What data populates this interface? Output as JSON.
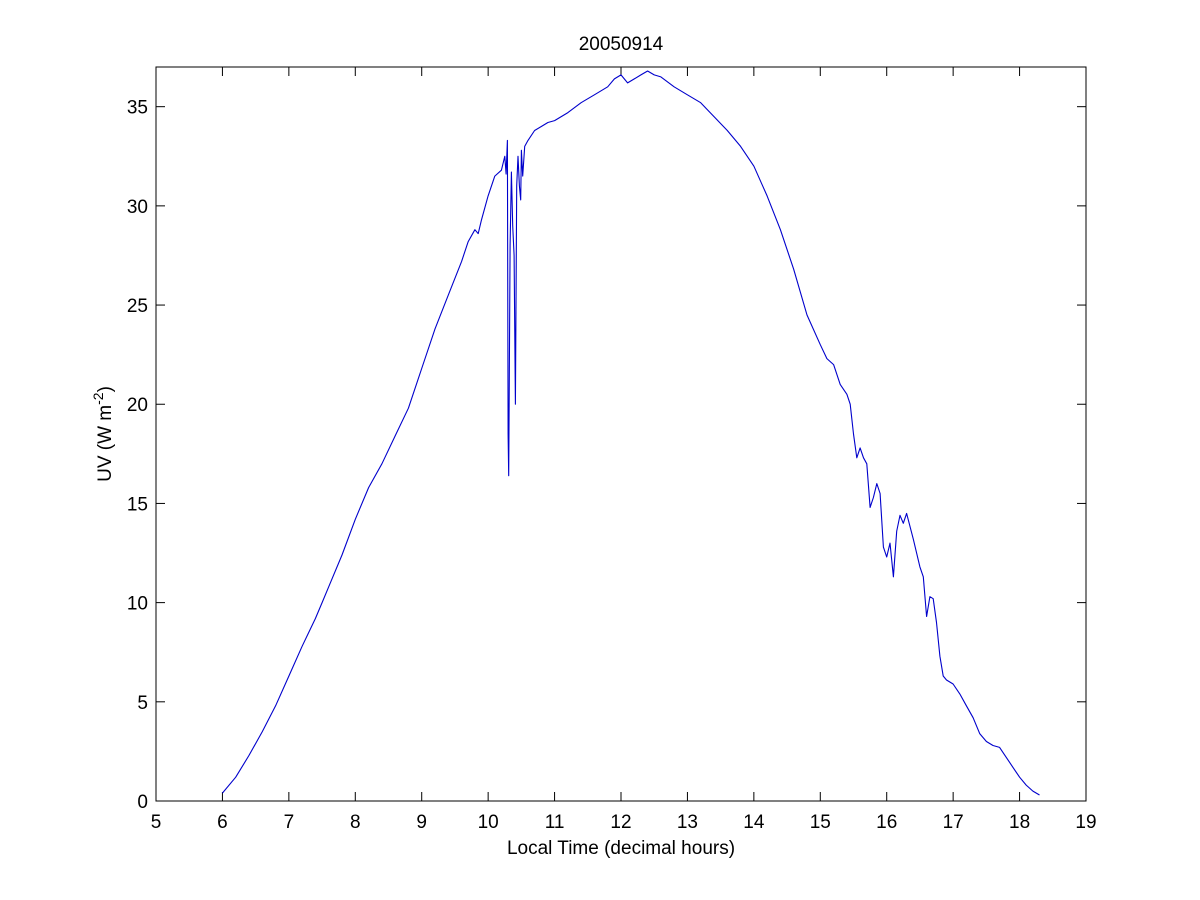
{
  "chart_data": {
    "type": "line",
    "title": "20050914",
    "xlabel": "Local Time (decimal hours)",
    "ylabel": {
      "prefix": "UV (W m",
      "superscript": "-2",
      "suffix": ")"
    },
    "xlim": [
      5,
      19
    ],
    "ylim": [
      0,
      37
    ],
    "xticks": [
      5,
      6,
      7,
      8,
      9,
      10,
      11,
      12,
      13,
      14,
      15,
      16,
      17,
      18,
      19
    ],
    "yticks": [
      0,
      5,
      10,
      15,
      20,
      25,
      30,
      35
    ],
    "grid": false,
    "legend": "none",
    "line_color": "#0000cc",
    "series": [
      {
        "x": [
          6.0,
          6.2,
          6.4,
          6.6,
          6.8,
          7.0,
          7.2,
          7.4,
          7.5,
          7.6,
          7.8,
          8.0,
          8.2,
          8.4,
          8.6,
          8.8,
          9.0,
          9.2,
          9.4,
          9.6,
          9.7,
          9.8,
          9.85,
          9.9,
          10.0,
          10.1,
          10.2,
          10.25,
          10.27,
          10.29,
          10.3,
          10.31,
          10.33,
          10.35,
          10.37,
          10.39,
          10.41,
          10.43,
          10.45,
          10.47,
          10.49,
          10.5,
          10.52,
          10.55,
          10.6,
          10.7,
          10.8,
          10.9,
          11.0,
          11.2,
          11.4,
          11.6,
          11.8,
          11.9,
          12.0,
          12.1,
          12.2,
          12.3,
          12.4,
          12.5,
          12.6,
          12.8,
          13.0,
          13.2,
          13.4,
          13.6,
          13.8,
          14.0,
          14.2,
          14.4,
          14.6,
          14.8,
          15.0,
          15.1,
          15.2,
          15.3,
          15.4,
          15.45,
          15.5,
          15.55,
          15.6,
          15.65,
          15.7,
          15.75,
          15.8,
          15.85,
          15.9,
          15.95,
          16.0,
          16.05,
          16.1,
          16.15,
          16.2,
          16.25,
          16.3,
          16.4,
          16.5,
          16.55,
          16.6,
          16.65,
          16.7,
          16.75,
          16.8,
          16.85,
          16.9,
          17.0,
          17.1,
          17.2,
          17.3,
          17.4,
          17.5,
          17.6,
          17.7,
          17.8,
          17.9,
          18.0,
          18.1,
          18.2,
          18.3
        ],
        "y": [
          0.4,
          1.2,
          2.3,
          3.5,
          4.8,
          6.3,
          7.8,
          9.2,
          10.0,
          10.8,
          12.4,
          14.2,
          15.8,
          17.0,
          18.4,
          19.8,
          21.8,
          23.8,
          25.5,
          27.2,
          28.2,
          28.8,
          28.6,
          29.3,
          30.5,
          31.5,
          31.8,
          32.5,
          31.6,
          33.3,
          18.5,
          16.4,
          28.0,
          31.7,
          29.0,
          27.5,
          20.0,
          31.0,
          32.5,
          31.0,
          30.3,
          32.8,
          31.5,
          33.0,
          33.3,
          33.8,
          34.0,
          34.2,
          34.3,
          34.7,
          35.2,
          35.6,
          36.0,
          36.4,
          36.6,
          36.2,
          36.4,
          36.6,
          36.8,
          36.6,
          36.5,
          36.0,
          35.6,
          35.2,
          34.5,
          33.8,
          33.0,
          32.0,
          30.5,
          28.8,
          26.8,
          24.5,
          23.0,
          22.3,
          22.0,
          21.0,
          20.5,
          20.0,
          18.5,
          17.3,
          17.8,
          17.3,
          17.0,
          14.8,
          15.3,
          16.0,
          15.5,
          12.8,
          12.3,
          13.0,
          11.3,
          13.6,
          14.4,
          14.0,
          14.5,
          13.2,
          11.8,
          11.3,
          9.3,
          10.3,
          10.2,
          9.0,
          7.3,
          6.3,
          6.1,
          5.9,
          5.4,
          4.8,
          4.2,
          3.4,
          3.0,
          2.8,
          2.7,
          2.2,
          1.7,
          1.2,
          0.8,
          0.5,
          0.3
        ]
      }
    ]
  }
}
